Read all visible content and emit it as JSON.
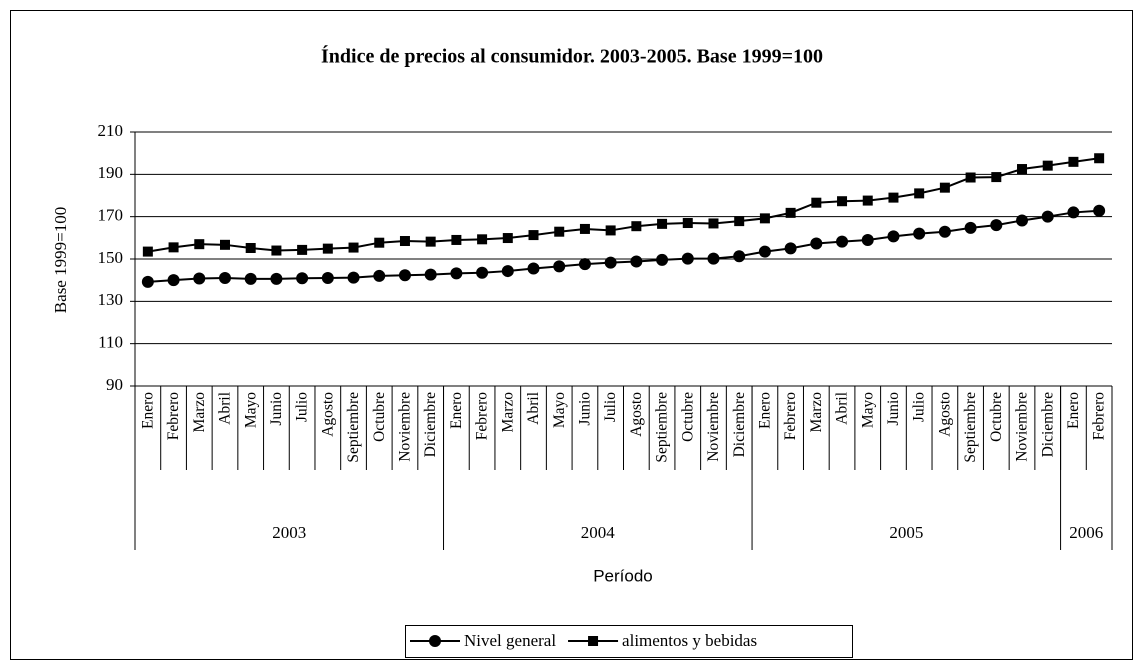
{
  "chart_data": {
    "type": "line",
    "title": "Índice de precios al consumidor. 2003-2005. Base 1999=100",
    "y_label": "Base 1999=100",
    "x_label": "Período",
    "category_groups": [
      {
        "label": "2003",
        "categories": [
          "Enero",
          "Febrero",
          "Marzo",
          "Abril",
          "Mayo",
          "Junio",
          "Julio",
          "Agosto",
          "Septiembre",
          "Octubre",
          "Noviembre",
          "Diciembre"
        ]
      },
      {
        "label": "2004",
        "categories": [
          "Enero",
          "Febrero",
          "Marzo",
          "Abril",
          "Mayo",
          "Junio",
          "Julio",
          "Agosto",
          "Septiembre",
          "Octubre",
          "Noviembre",
          "Diciembre"
        ]
      },
      {
        "label": "2005",
        "categories": [
          "Enero",
          "Febrero",
          "Marzo",
          "Abril",
          "Mayo",
          "Junio",
          "Julio",
          "Agosto",
          "Septiembre",
          "Octubre",
          "Noviembre",
          "Diciembre"
        ]
      },
      {
        "label": "2006",
        "categories": [
          "Enero",
          "Febrero"
        ]
      }
    ],
    "series": [
      {
        "name": "Nivel general",
        "color": "#000000",
        "marker": "circle",
        "values": [
          139.2,
          140,
          140.8,
          141,
          140.6,
          140.6,
          140.9,
          141,
          141.2,
          142,
          142.3,
          142.6,
          143.2,
          143.5,
          144.3,
          145.5,
          146.5,
          147.6,
          148.3,
          148.8,
          149.6,
          150.2,
          150.2,
          151.3,
          153.5,
          155,
          157.3,
          158.2,
          159,
          160.7,
          162,
          162.9,
          164.7,
          166,
          168.2,
          170,
          172,
          172.8
        ]
      },
      {
        "name": "alimentos y bebidas",
        "color": "#000000",
        "marker": "square",
        "values": [
          153.5,
          155.5,
          157,
          156.7,
          155.2,
          154,
          154.3,
          154.9,
          155.4,
          157.7,
          158.5,
          158.2,
          159,
          159.3,
          159.9,
          161.3,
          162.9,
          164.2,
          163.5,
          165.5,
          166.6,
          167,
          166.8,
          167.9,
          169.2,
          171.8,
          176.6,
          177.3,
          177.6,
          179,
          181,
          183.7,
          188.5,
          188.7,
          192.5,
          194.1,
          195.9,
          197.6
        ]
      }
    ],
    "ylim": [
      90,
      210
    ],
    "yticks": [
      90,
      110,
      130,
      150,
      170,
      190,
      210
    ],
    "grid": true,
    "legend": "bottom"
  }
}
